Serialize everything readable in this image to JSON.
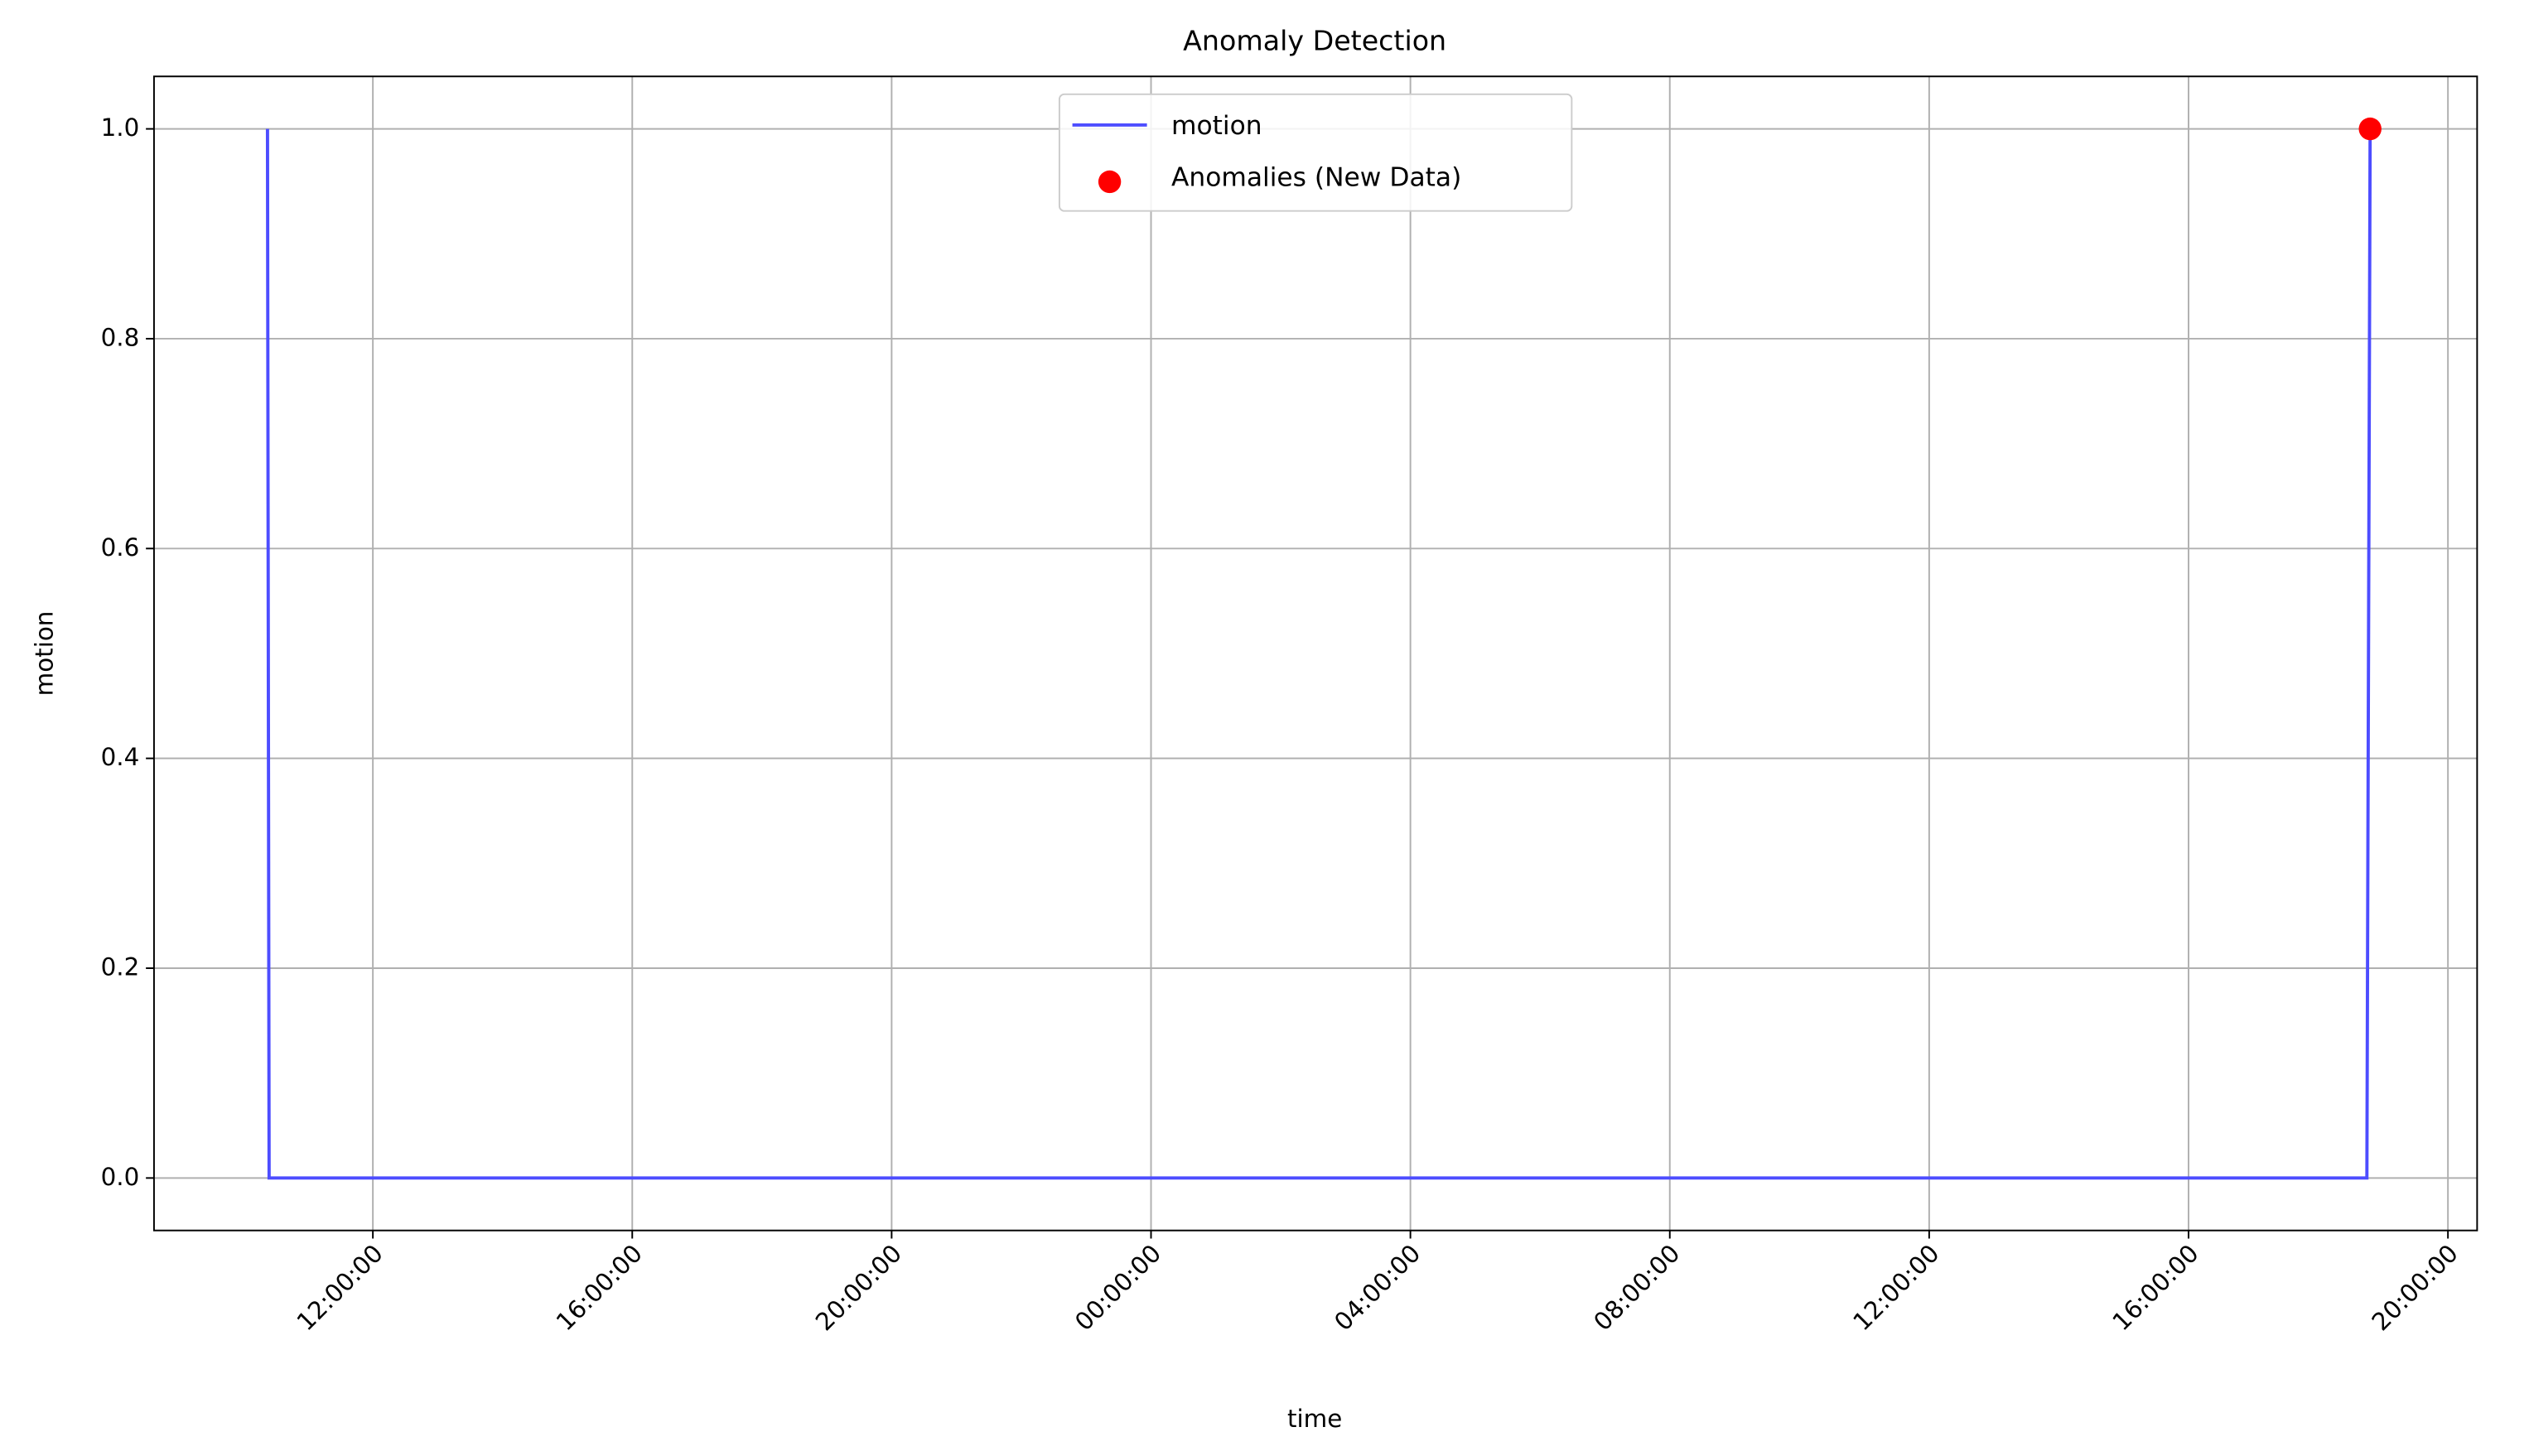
{
  "chart_data": {
    "type": "line",
    "title": "Anomaly Detection",
    "x_label": "time",
    "y_label": "motion",
    "series": [
      {
        "name": "motion",
        "type": "line",
        "color": "#4d4dff",
        "x": [
          10.375,
          10.4,
          42.75,
          42.8
        ],
        "values": [
          1,
          0,
          0,
          1
        ]
      },
      {
        "name": "Anomalies (New Data)",
        "type": "scatter",
        "color": "#ff0000",
        "x": [
          42.8
        ],
        "values": [
          1
        ]
      }
    ],
    "xlim": [
      8.625,
      44.45
    ],
    "xticks": [
      {
        "value": 12,
        "label": "12:00:00"
      },
      {
        "value": 16,
        "label": "16:00:00"
      },
      {
        "value": 20,
        "label": "20:00:00"
      },
      {
        "value": 24,
        "label": "00:00:00"
      },
      {
        "value": 28,
        "label": "04:00:00"
      },
      {
        "value": 32,
        "label": "08:00:00"
      },
      {
        "value": 36,
        "label": "12:00:00"
      },
      {
        "value": 40,
        "label": "16:00:00"
      },
      {
        "value": 44,
        "label": "20:00:00"
      }
    ],
    "ylim": [
      -0.05,
      1.05
    ],
    "yticks": [
      {
        "value": 0,
        "label": "0.0"
      },
      0.2,
      0.4,
      0.6,
      0.8,
      {
        "value": 1,
        "label": "1.0"
      }
    ],
    "grid": true,
    "legend": "upper center"
  }
}
